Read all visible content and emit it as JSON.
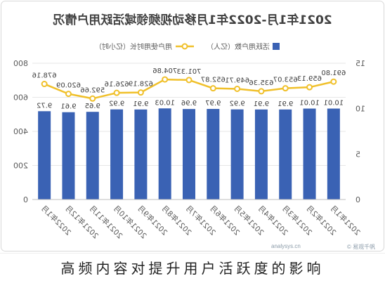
{
  "caption": "高频内容对提升用户活跃度的影响",
  "watermark": {
    "site": "analysys.cn",
    "brand": "© 易观千帆"
  },
  "chart_data": {
    "type": "bar",
    "mirrored": true,
    "title": "2021年1月-2022年1月移动视频领域活跃用户情况",
    "categories": [
      "2021年1月",
      "2021年2月",
      "2021年3月",
      "2021年4月",
      "2021年5月",
      "2021年6月",
      "2021年7月",
      "2021年8月",
      "2021年9月",
      "2021年10月",
      "2021年11月",
      "2021年12月",
      "2022年1月"
    ],
    "series": [
      {
        "name": "活跃用户数（亿人）",
        "type": "bar",
        "axis": "left",
        "color": "#3a62b4",
        "values": [
          10.01,
          10.01,
          9.91,
          9.91,
          9.92,
          9.97,
          9.96,
          10.03,
          9.91,
          9.92,
          9.65,
          9.61,
          9.72
        ]
      },
      {
        "name": "用户使用时长（亿小时）",
        "type": "line",
        "axis": "right",
        "color": "#f0c02a",
        "values": [
          691.8,
          659.13,
          653.07,
          635.36,
          649.71,
          652.87,
          701.33,
          704.86,
          628.19,
          626.16,
          592.66,
          620.09,
          678.16
        ]
      }
    ],
    "y_left": {
      "range": [
        0,
        15
      ],
      "ticks": [
        0,
        5,
        10,
        15
      ]
    },
    "y_right": {
      "range": [
        0,
        800
      ],
      "ticks": [
        0,
        200,
        400,
        600,
        800
      ]
    },
    "legend": "top",
    "grid": true
  }
}
